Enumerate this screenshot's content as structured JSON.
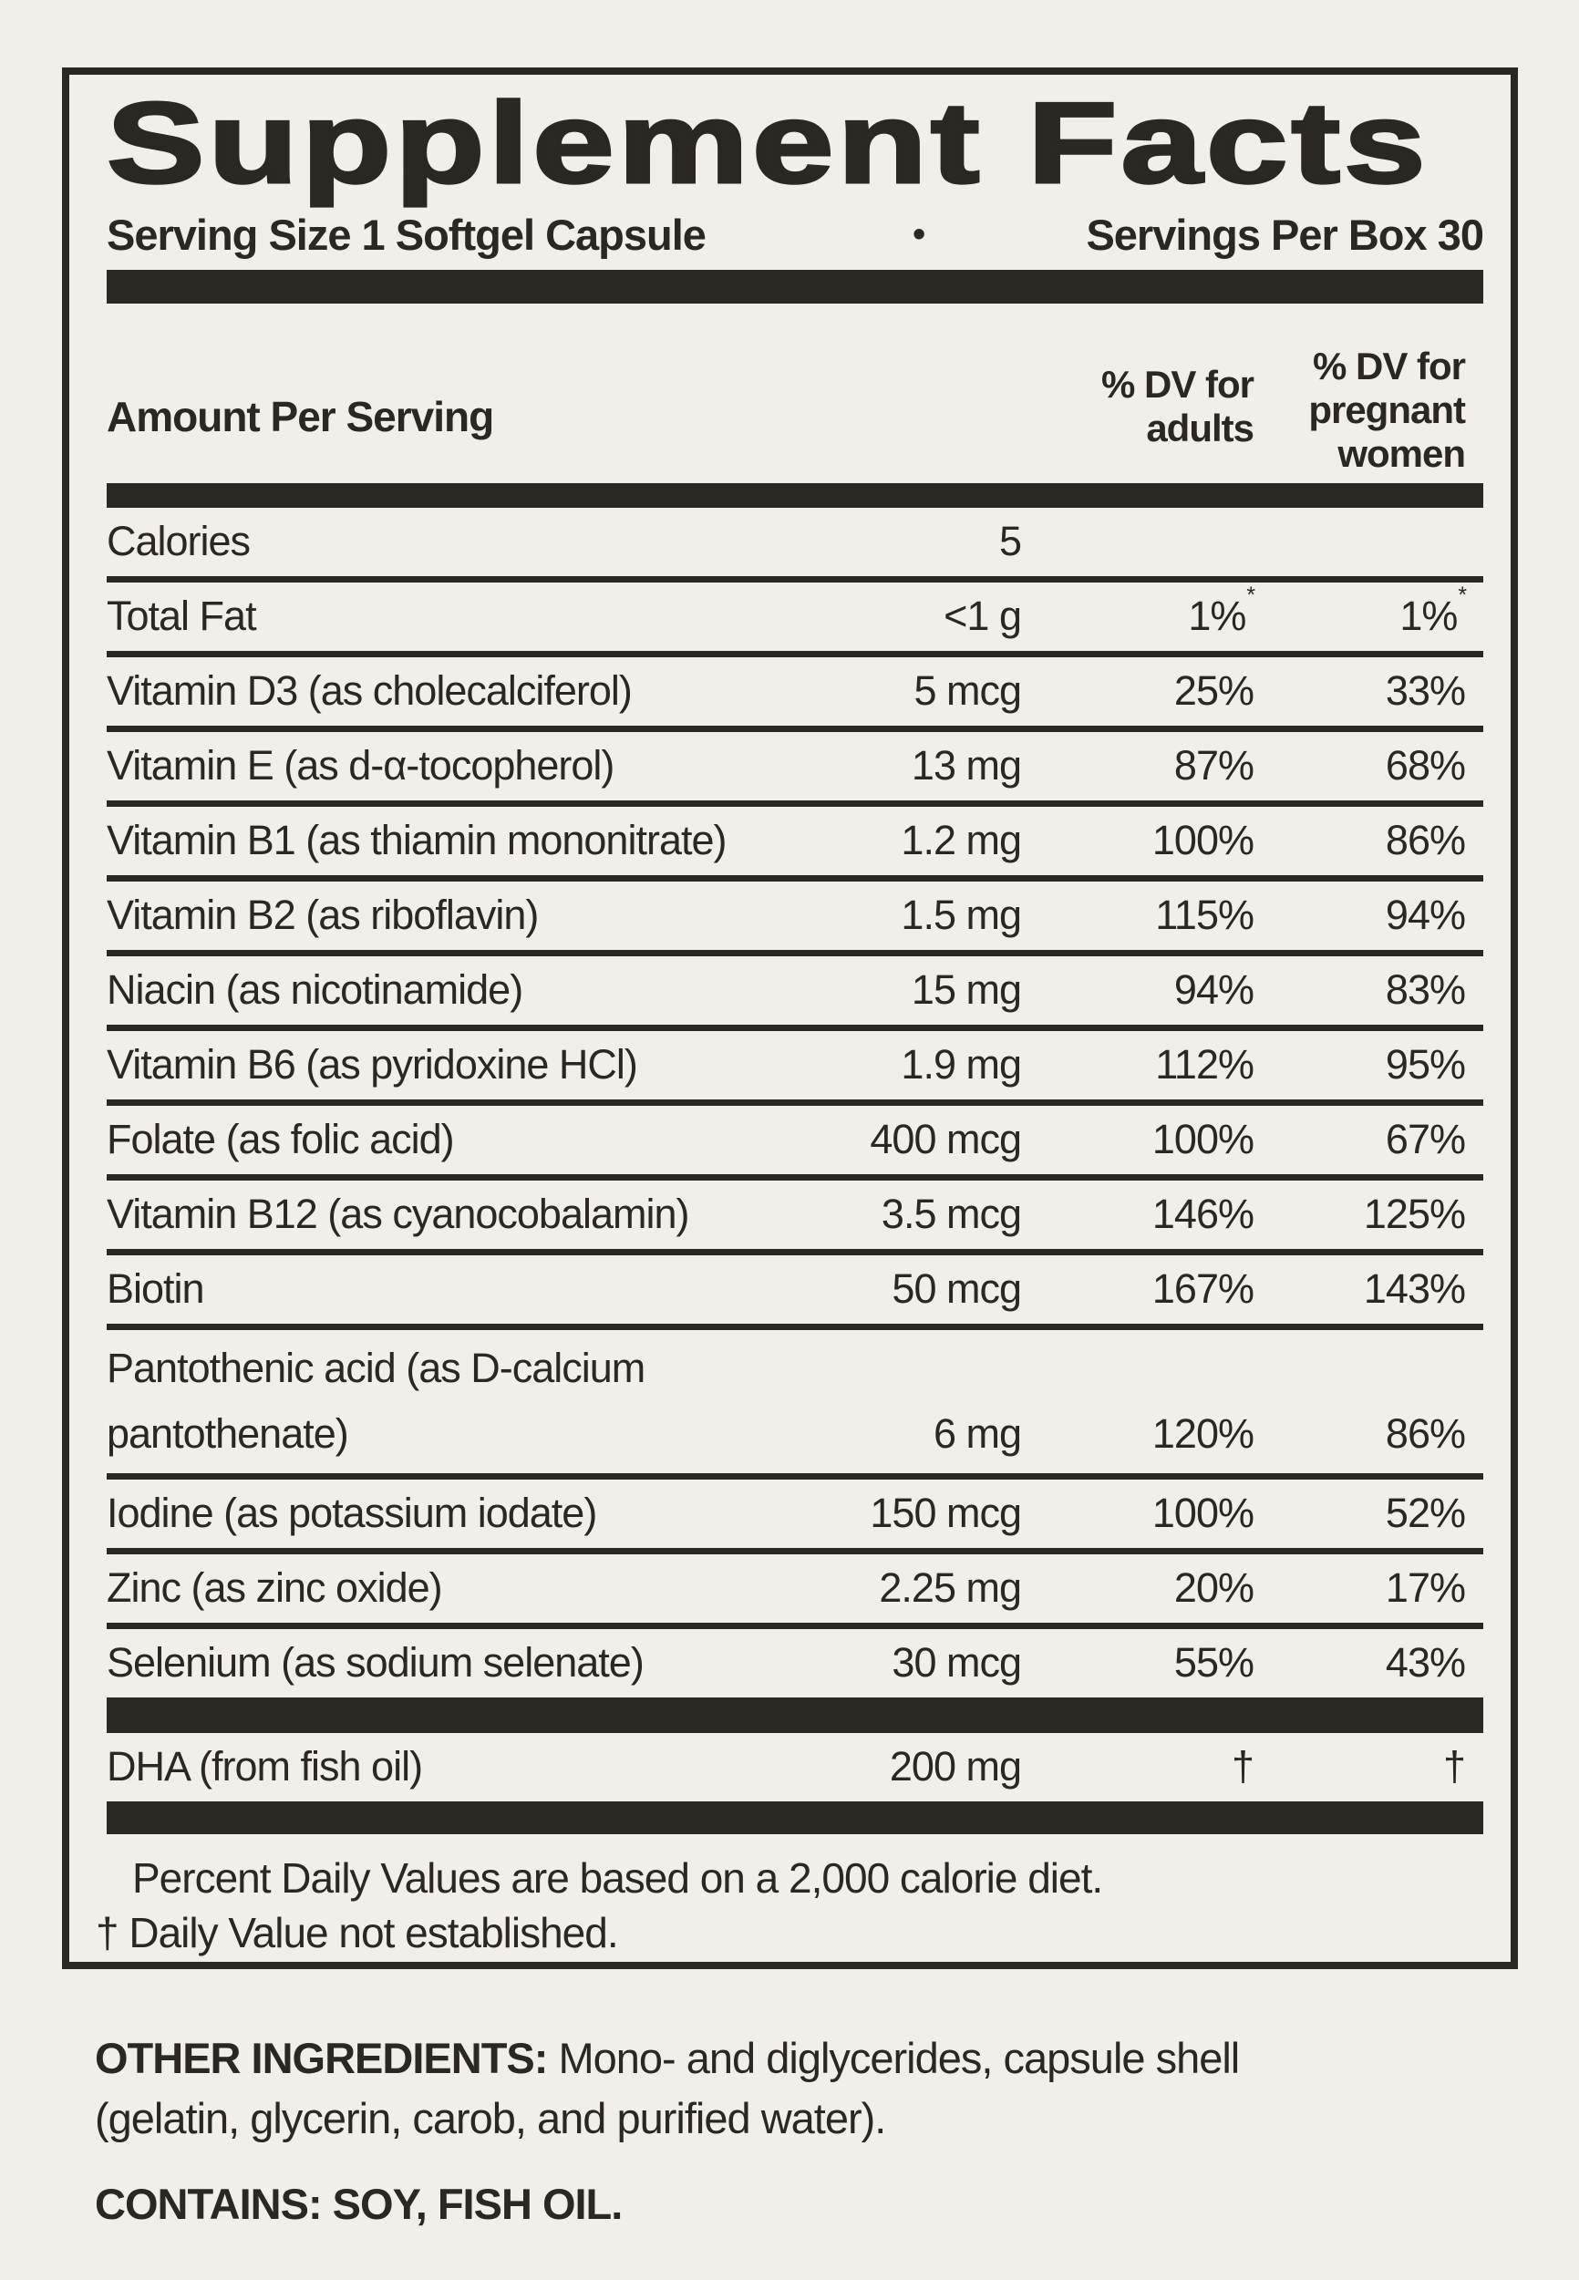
{
  "colors": {
    "background": "#f2eee9",
    "ink": "#2b2722"
  },
  "title": "Supplement Facts",
  "serving": {
    "size_label": "Serving Size 1 Softgel Capsule",
    "separator": "•",
    "per_box_label": "Servings Per Box 30"
  },
  "columns": {
    "amount_per_serving": "Amount Per Serving",
    "adults_l1": "% DV for",
    "adults_l2": "adults",
    "pregnant_l1": "% DV for",
    "pregnant_l2": "pregnant",
    "pregnant_l3": "women"
  },
  "rows": [
    {
      "name": "Calories",
      "amount": "5",
      "adults": "",
      "pregnant": ""
    },
    {
      "name": "Total Fat",
      "amount": "<1 g",
      "adults": "1%",
      "adults_sup": "*",
      "pregnant": "1%",
      "pregnant_sup": "*"
    },
    {
      "name": "Vitamin D3 (as cholecalciferol)",
      "amount": "5 mcg",
      "adults": "25%",
      "pregnant": "33%"
    },
    {
      "name": "Vitamin E (as d-α-tocopherol)",
      "amount": "13 mg",
      "adults": "87%",
      "pregnant": "68%"
    },
    {
      "name": "Vitamin B1 (as thiamin mononitrate)",
      "amount": "1.2 mg",
      "adults": "100%",
      "pregnant": "86%"
    },
    {
      "name": "Vitamin B2 (as riboflavin)",
      "amount": "1.5 mg",
      "adults": "115%",
      "pregnant": "94%"
    },
    {
      "name": "Niacin (as nicotinamide)",
      "amount": "15 mg",
      "adults": "94%",
      "pregnant": "83%"
    },
    {
      "name": "Vitamin B6 (as pyridoxine HCl)",
      "amount": "1.9 mg",
      "adults": "112%",
      "pregnant": "95%"
    },
    {
      "name": "Folate (as folic acid)",
      "amount": "400 mcg",
      "adults": "100%",
      "pregnant": "67%"
    },
    {
      "name": "Vitamin B12 (as cyanocobalamin)",
      "amount": "3.5 mcg",
      "adults": "146%",
      "pregnant": "125%"
    },
    {
      "name": "Biotin",
      "amount": "50 mcg",
      "adults": "167%",
      "pregnant": "143%"
    },
    {
      "name": "Pantothenic acid (as D-calcium",
      "name2": "pantothenate)",
      "amount": "6 mg",
      "adults": "120%",
      "pregnant": "86%"
    },
    {
      "name": "Iodine (as potassium iodate)",
      "amount": "150 mcg",
      "adults": "100%",
      "pregnant": "52%"
    },
    {
      "name": "Zinc (as zinc oxide)",
      "amount": "2.25 mg",
      "adults": "20%",
      "pregnant": "17%"
    },
    {
      "name": "Selenium (as sodium selenate)",
      "amount": "30 mcg",
      "adults": "55%",
      "pregnant": "43%"
    },
    {
      "name": "DHA (from fish oil)",
      "amount": "200 mg",
      "adults": "†",
      "pregnant": "†"
    }
  ],
  "footnotes": {
    "line1": "Percent Daily Values are based on a 2,000 calorie diet.",
    "line2": "† Daily Value not established."
  },
  "other_ingredients": {
    "label": "OTHER INGREDIENTS:",
    "rest": " Mono- and diglycerides, capsule shell",
    "line2": "(gelatin, glycerin, carob, and purified water)."
  },
  "contains": "CONTAINS: SOY, FISH OIL."
}
